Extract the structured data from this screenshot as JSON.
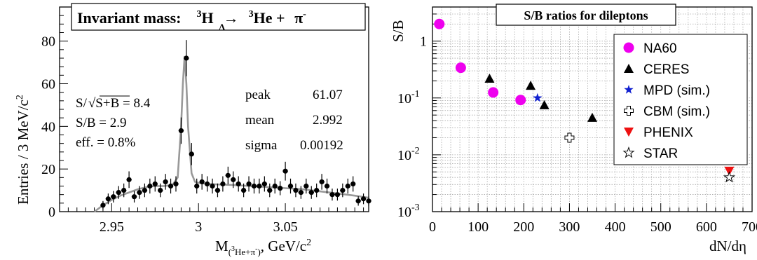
{
  "colors": {
    "fit": "#999999",
    "na60": "#ee00ee",
    "ceres": "#000000",
    "mpd": "#1020d0",
    "phenix": "#ee1111",
    "data": "#000000"
  },
  "chart_data": [
    {
      "type": "scatter",
      "title": "Invariant mass:",
      "title_reaction": {
        "lhs_sup": "3",
        "lhs_sub": "Λ",
        "lhs": "H",
        "arrow": "→",
        "rhs_sup": "3",
        "rhs": "He + ",
        "pion": "π",
        "pion_sup": "-"
      },
      "xlabel": {
        "prefix": "M",
        "sub": "(3He+π-)",
        "suffix": ", GeV/c",
        "suffix_sup": "2"
      },
      "ylabel": {
        "text": "Entries / 3 MeV/c",
        "sup": "2"
      },
      "xlim": [
        2.92,
        3.098
      ],
      "ylim": [
        0,
        96
      ],
      "xticks": [
        {
          "v": 2.95,
          "label": "2.95"
        },
        {
          "v": 3.0,
          "label": "3"
        },
        {
          "v": 3.05,
          "label": "3.05"
        }
      ],
      "yticks": [
        {
          "v": 0,
          "label": "0"
        },
        {
          "v": 20,
          "label": "20"
        },
        {
          "v": 40,
          "label": "40"
        },
        {
          "v": 60,
          "label": "60"
        },
        {
          "v": 80,
          "label": "80"
        }
      ],
      "stats_left": {
        "significance_prefix": "S/",
        "significance_radicand": "S+B",
        "significance_value": " = 8.4",
        "sb": "S/B = 2.9",
        "eff": "eff. = 0.8%"
      },
      "stats_right": [
        {
          "name": "peak",
          "value": "61.07"
        },
        {
          "name": "mean",
          "value": "2.992"
        },
        {
          "name": "sigma",
          "value": "0.00192"
        }
      ],
      "fit_params": {
        "peak": 61.07,
        "mean": 2.992,
        "sigma": 0.00192
      },
      "x": [
        2.945,
        2.948,
        2.951,
        2.954,
        2.957,
        2.96,
        2.963,
        2.966,
        2.969,
        2.972,
        2.975,
        2.978,
        2.981,
        2.984,
        2.987,
        2.99,
        2.993,
        2.996,
        2.999,
        3.002,
        3.005,
        3.008,
        3.011,
        3.014,
        3.017,
        3.02,
        3.023,
        3.026,
        3.029,
        3.032,
        3.035,
        3.038,
        3.041,
        3.044,
        3.047,
        3.05,
        3.053,
        3.056,
        3.059,
        3.062,
        3.065,
        3.068,
        3.071,
        3.074,
        3.077,
        3.08,
        3.083,
        3.086,
        3.089,
        3.092,
        3.095,
        3.098
      ],
      "y": [
        3,
        6,
        7,
        9,
        10,
        15,
        7,
        9,
        10,
        12,
        13,
        10,
        14,
        12,
        13,
        38,
        72,
        27,
        12,
        14,
        13,
        12,
        10,
        13,
        17,
        15,
        13,
        10,
        13,
        12,
        12,
        13,
        10,
        12,
        11,
        19,
        12,
        10,
        9,
        12,
        9,
        10,
        14,
        12,
        8,
        8,
        10,
        12,
        13,
        5,
        6,
        5
      ],
      "yerr": [
        2,
        2.5,
        2.7,
        3,
        3.2,
        3.9,
        2.7,
        3,
        3.2,
        3.5,
        3.6,
        3.2,
        3.7,
        3.5,
        3.6,
        6.2,
        8.5,
        5.2,
        3.5,
        3.7,
        3.6,
        3.5,
        3.2,
        3.6,
        4.1,
        3.9,
        3.6,
        3.2,
        3.6,
        3.5,
        3.5,
        3.6,
        3.2,
        3.5,
        3.3,
        4.4,
        3.5,
        3.2,
        3,
        3.5,
        3,
        3.2,
        3.7,
        3.5,
        2.8,
        2.8,
        3.2,
        3.5,
        3.6,
        2.2,
        2.5,
        2.2
      ],
      "curve_x": [
        2.94,
        2.945,
        2.95,
        2.955,
        2.96,
        2.965,
        2.97,
        2.975,
        2.98,
        2.985,
        2.988,
        2.99,
        2.991,
        2.992,
        2.993,
        2.994,
        2.996,
        2.998,
        3.0,
        3.005,
        3.01,
        3.02,
        3.03,
        3.04,
        3.05,
        3.06,
        3.07,
        3.08,
        3.09,
        3.098
      ],
      "curve_y": [
        0,
        3,
        5.5,
        7.5,
        9,
        10.5,
        11.5,
        12,
        12,
        12.5,
        16,
        40,
        60,
        73,
        60,
        40,
        18,
        14,
        13.5,
        13,
        12.8,
        12.5,
        12,
        11.5,
        11,
        10.5,
        9.5,
        8.5,
        7.5,
        6.5
      ]
    },
    {
      "type": "scatter",
      "title": "S/B ratios for dileptons",
      "xlabel": "dN/dη",
      "ylabel": "S/B",
      "xlim": [
        0,
        700
      ],
      "ylim_log10": [
        -3,
        0.6
      ],
      "log_y": true,
      "grid": true,
      "legend_position": "top-right",
      "xticks": [
        {
          "v": 0,
          "label": "0"
        },
        {
          "v": 100,
          "label": "100"
        },
        {
          "v": 200,
          "label": "200"
        },
        {
          "v": 300,
          "label": "300"
        },
        {
          "v": 400,
          "label": "400"
        },
        {
          "v": 500,
          "label": "500"
        },
        {
          "v": 600,
          "label": "600"
        },
        {
          "v": 700,
          "label": "700"
        }
      ],
      "yticks": [
        {
          "v": 0.001,
          "base": "10",
          "exp": "-3"
        },
        {
          "v": 0.01,
          "base": "10",
          "exp": "-2"
        },
        {
          "v": 0.1,
          "base": "10",
          "exp": "-1"
        },
        {
          "v": 1,
          "base": "1",
          "exp": ""
        }
      ],
      "series": [
        {
          "name": "NA60",
          "marker": "circle",
          "color_key": "na60",
          "x": [
            15,
            62,
            133,
            193
          ],
          "y": [
            2.0,
            0.34,
            0.125,
            0.092
          ]
        },
        {
          "name": "CERES",
          "marker": "triangle-up",
          "color_key": "ceres",
          "x": [
            125,
            215,
            245,
            350
          ],
          "y": [
            0.22,
            0.165,
            0.075,
            0.045
          ]
        },
        {
          "name": "MPD (sim.)",
          "marker": "star",
          "color_key": "mpd",
          "x": [
            230
          ],
          "y": [
            0.1
          ]
        },
        {
          "name": "CBM (sim.)",
          "marker": "open-cross",
          "color_key": "ceres",
          "x": [
            300
          ],
          "y": [
            0.02
          ]
        },
        {
          "name": "PHENIX",
          "marker": "triangle-down",
          "color_key": "phenix",
          "x": [
            650
          ],
          "y": [
            0.0052
          ]
        },
        {
          "name": "STAR",
          "marker": "open-star",
          "color_key": "ceres",
          "x": [
            650
          ],
          "y": [
            0.004
          ]
        }
      ]
    }
  ]
}
